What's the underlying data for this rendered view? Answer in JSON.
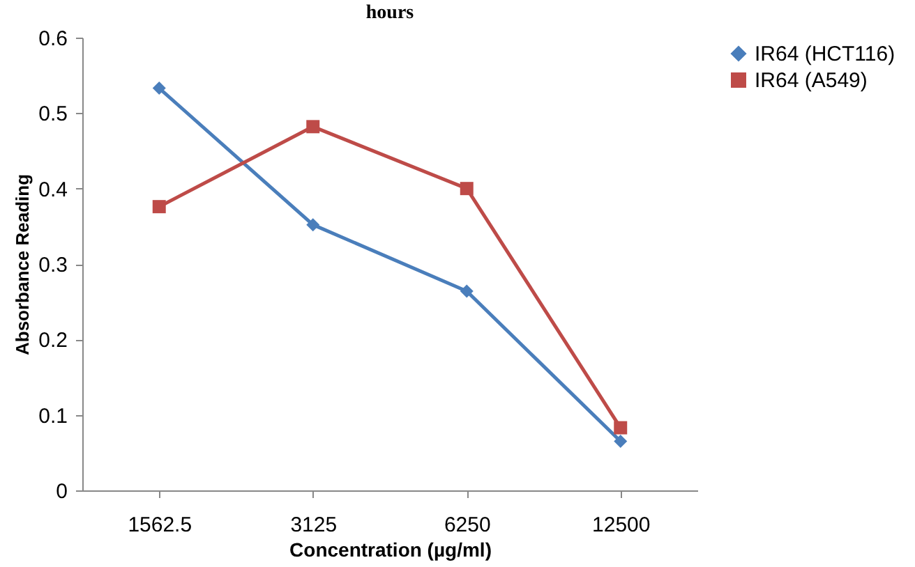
{
  "chart_data": {
    "type": "line",
    "title": "hours",
    "xlabel": "Concentration (µg/ml)",
    "ylabel": "Absorbance Reading",
    "categories": [
      "1562.5",
      "3125",
      "6250",
      "12500"
    ],
    "series": [
      {
        "name": "IR64 (HCT116)",
        "color": "#4a7ebb",
        "marker": "diamond",
        "values": [
          0.533,
          0.352,
          0.264,
          0.065
        ]
      },
      {
        "name": "IR64 (A549)",
        "color": "#be4b48",
        "marker": "square",
        "values": [
          0.376,
          0.482,
          0.4,
          0.083
        ]
      }
    ],
    "ylim": [
      0,
      0.6
    ],
    "yticks": [
      0,
      0.1,
      0.2,
      0.3,
      0.4,
      0.5,
      0.6
    ],
    "grid": false,
    "legend": "right",
    "line_style": "solid"
  }
}
